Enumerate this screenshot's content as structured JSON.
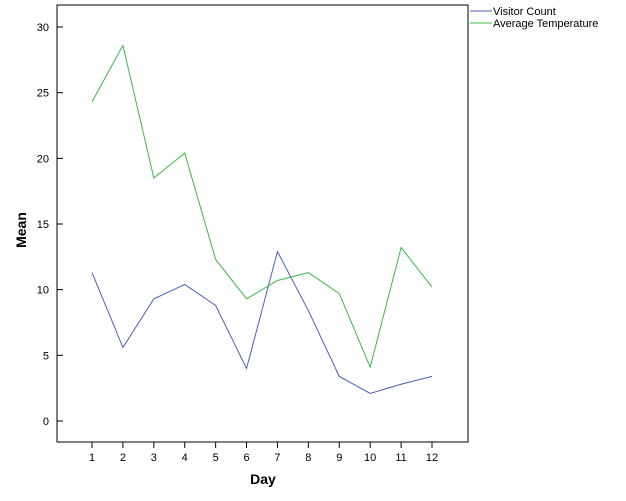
{
  "chart_data": {
    "type": "line",
    "title": "",
    "xlabel": "Day",
    "ylabel": "Mean",
    "x": [
      1,
      2,
      3,
      4,
      5,
      6,
      7,
      8,
      9,
      10,
      11,
      12
    ],
    "x_tick_labels": [
      "1",
      "2",
      "3",
      "4",
      "5",
      "6",
      "7",
      "8",
      "9",
      "10",
      "11",
      "12"
    ],
    "y_ticks": [
      0,
      5,
      10,
      15,
      20,
      25,
      30
    ],
    "y_tick_labels": [
      "0",
      "5",
      "10",
      "15",
      "20",
      "25",
      "30"
    ],
    "ylim": [
      -1.6,
      31.6
    ],
    "grid": false,
    "legend_position": "top-right outside",
    "series": [
      {
        "name": "Visitor Count",
        "color": "#4a5fb8",
        "values": [
          11.3,
          5.6,
          9.3,
          10.4,
          8.8,
          4.0,
          12.9,
          8.4,
          3.4,
          2.1,
          2.8,
          3.4
        ]
      },
      {
        "name": "Average Temperature",
        "color": "#3cb84a",
        "values": [
          24.3,
          28.6,
          18.5,
          20.4,
          12.3,
          9.3,
          10.7,
          11.3,
          9.7,
          4.1,
          13.2,
          10.2
        ]
      }
    ]
  }
}
